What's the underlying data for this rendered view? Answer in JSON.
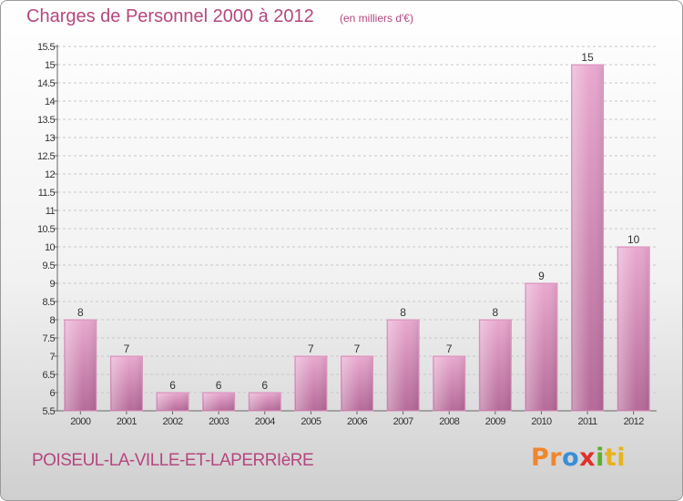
{
  "header": {
    "title": "Charges de Personnel 2000 à 2012",
    "subtitle": "(en milliers d'€)"
  },
  "footer": {
    "commune": "POISEUL-LA-VILLE-ET-LAPERRIèRE",
    "logo_letters": [
      "Pr",
      "o",
      "x",
      "i",
      "ti"
    ]
  },
  "colors": {
    "accent": "#b5477f",
    "bar_light": "#e9a9cf",
    "bar_dark": "#b56a98",
    "grid": "#c8c8c8"
  },
  "chart_data": {
    "type": "bar",
    "title": "Charges de Personnel 2000 à 2012",
    "xlabel": "",
    "ylabel": "",
    "categories": [
      "2000",
      "2001",
      "2002",
      "2003",
      "2004",
      "2005",
      "2006",
      "2007",
      "2008",
      "2009",
      "2010",
      "2011",
      "2012"
    ],
    "values": [
      8,
      7,
      6,
      6,
      6,
      7,
      7,
      8,
      7,
      8,
      9,
      15,
      10
    ],
    "ylim": [
      5.5,
      15.5
    ],
    "yticks": [
      "5.5",
      "6",
      "6.5",
      "7",
      "7.5",
      "8",
      "8.5",
      "9",
      "9.5",
      "10",
      "10.5",
      "11",
      "11.5",
      "12",
      "12.5",
      "13",
      "13.5",
      "14",
      "14.5",
      "15",
      "15.5"
    ],
    "grid": true,
    "legend": "none"
  }
}
